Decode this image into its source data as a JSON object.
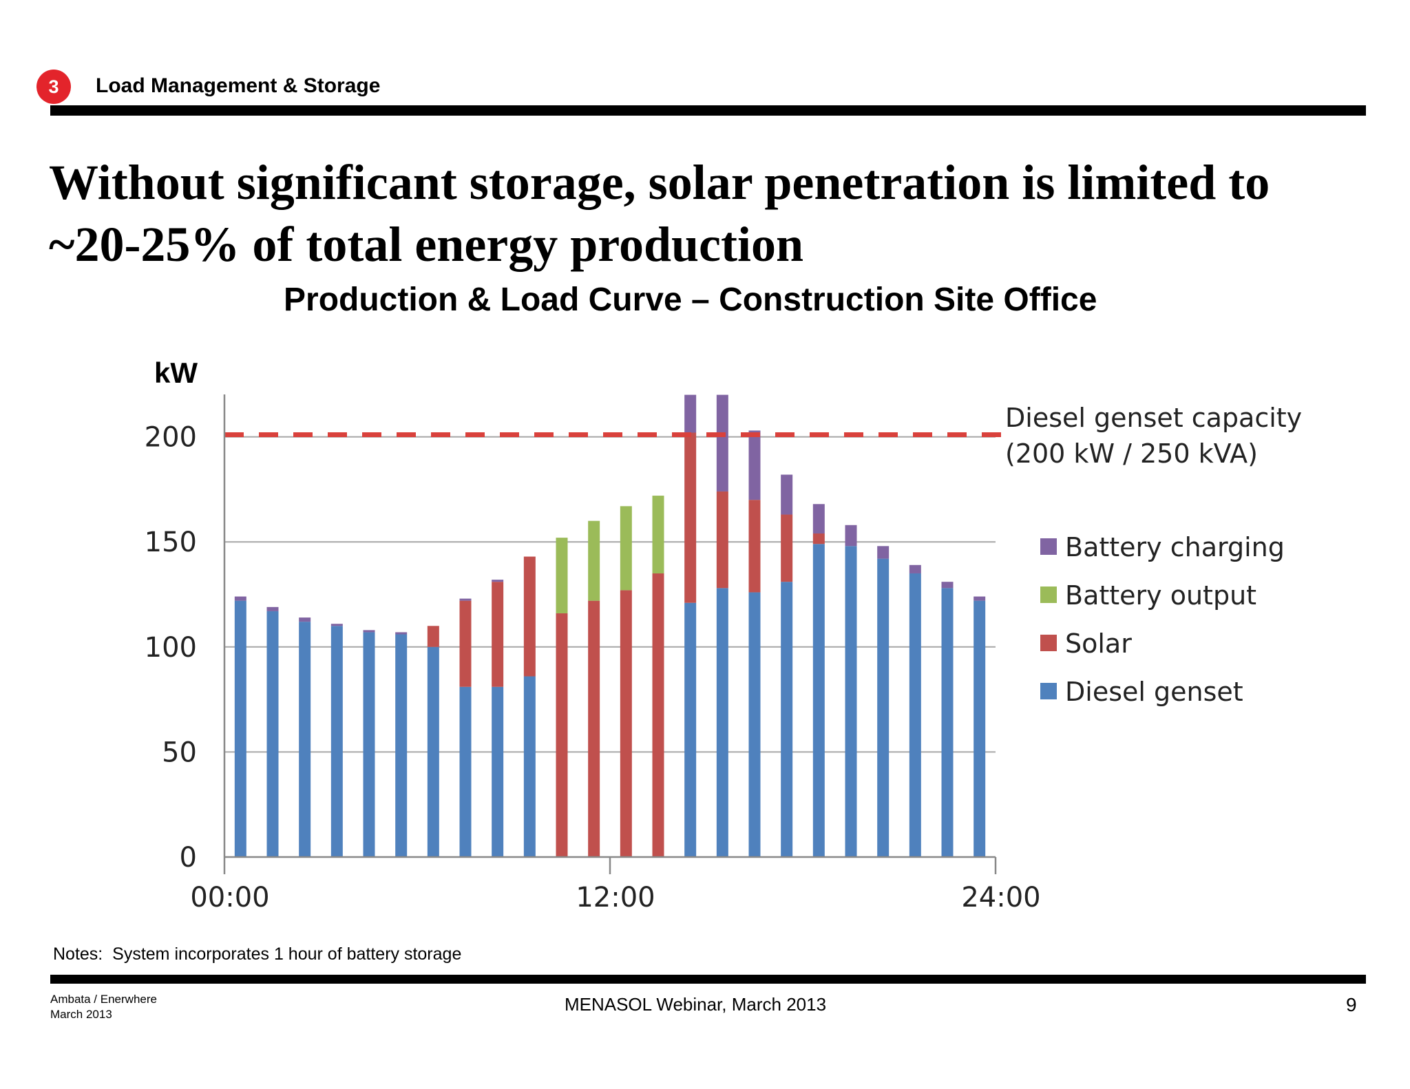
{
  "section": {
    "number": "3",
    "title": "Load Management & Storage"
  },
  "headline": "Without significant storage, solar penetration is limited to ~20-25% of total energy production",
  "notes": "Notes:  System incorporates 1 hour of battery storage",
  "footer": {
    "left_line1": "Ambata / Enerwhere",
    "left_line2": "March 2013",
    "center": "MENASOL Webinar, March 2013",
    "page": "9"
  },
  "colors": {
    "diesel": "#4f81bd",
    "solar": "#c0504d",
    "battery_output": "#9bbb59",
    "battery_charging": "#8064a2",
    "capacity_line": "#d9413c",
    "badge": "#e3242b"
  },
  "chart_data": {
    "type": "bar",
    "stacked": true,
    "title": "Production & Load Curve – Construction Site Office",
    "ylabel": "kW",
    "xlabel": "",
    "ylim": [
      0,
      220
    ],
    "yticks": [
      "0",
      "50",
      "100",
      "150",
      "200"
    ],
    "xticks": [
      "00:00",
      "12:00",
      "24:00"
    ],
    "grid": true,
    "legend_position": "right",
    "categories": [
      "1",
      "2",
      "3",
      "4",
      "5",
      "6",
      "7",
      "8",
      "9",
      "10",
      "11",
      "12",
      "13",
      "14",
      "15",
      "16",
      "17",
      "18",
      "19",
      "20",
      "21",
      "22",
      "23",
      "24"
    ],
    "series": [
      {
        "name": "Diesel genset",
        "color_key": "diesel",
        "values": [
          122,
          117,
          112,
          110,
          107,
          106,
          100,
          81,
          81,
          86,
          0,
          0,
          0,
          0,
          121,
          128,
          126,
          131,
          149,
          148,
          142,
          135,
          128,
          122
        ]
      },
      {
        "name": "Solar",
        "color_key": "solar",
        "values": [
          0,
          0,
          0,
          0,
          0,
          0,
          10,
          41,
          50,
          57,
          116,
          122,
          127,
          135,
          81,
          46,
          44,
          32,
          5,
          0,
          0,
          0,
          0,
          0
        ]
      },
      {
        "name": "Battery output",
        "color_key": "battery_output",
        "values": [
          0,
          0,
          0,
          0,
          0,
          0,
          0,
          0,
          0,
          0,
          36,
          38,
          40,
          37,
          0,
          0,
          0,
          0,
          0,
          0,
          0,
          0,
          0,
          0
        ]
      },
      {
        "name": "Battery charging",
        "color_key": "battery_charging",
        "values": [
          2,
          2,
          2,
          1,
          1,
          1,
          0,
          1,
          1,
          0,
          0,
          0,
          0,
          0,
          18,
          46,
          33,
          19,
          14,
          10,
          6,
          4,
          3,
          2
        ]
      }
    ],
    "reference_line": {
      "value": 201,
      "label_line1": "Diesel genset capacity",
      "label_line2": "(200 kW / 250 kVA)"
    }
  }
}
